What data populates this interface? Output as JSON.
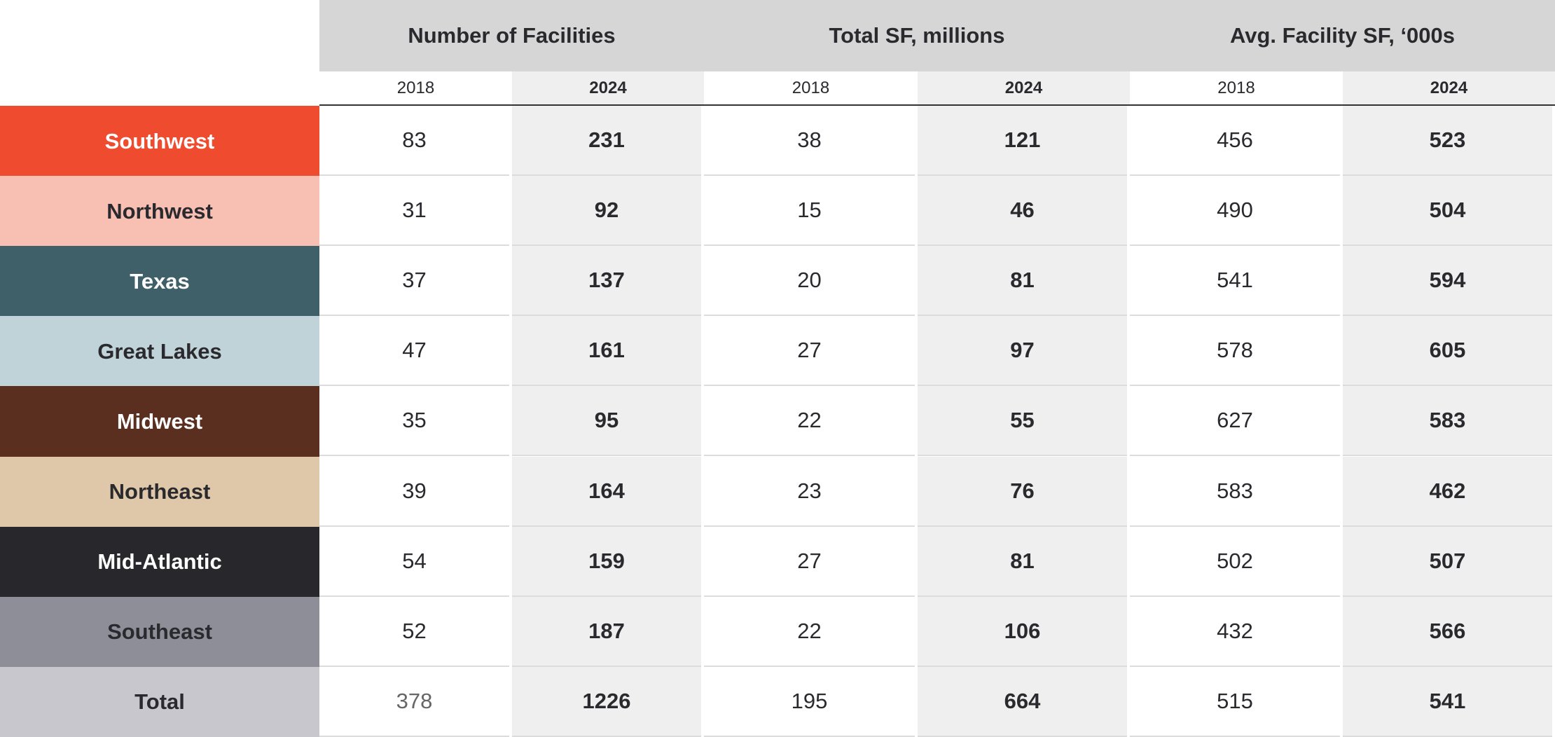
{
  "table": {
    "groups": [
      {
        "title": "Number of Facilities",
        "years": [
          "2018",
          "2024"
        ]
      },
      {
        "title": "Total SF, millions",
        "years": [
          "2018",
          "2024"
        ]
      },
      {
        "title": "Avg. Facility SF, ‘000s",
        "years": [
          "2018",
          "2024"
        ]
      }
    ],
    "rows": [
      {
        "label": "Southwest",
        "color": "#ef4b2e",
        "text_color": "#ffffff",
        "values": [
          83,
          231,
          38,
          121,
          456,
          523
        ]
      },
      {
        "label": "Northwest",
        "color": "#f8bfb3",
        "text_color": "#2a2a2e",
        "values": [
          31,
          92,
          15,
          46,
          490,
          504
        ]
      },
      {
        "label": "Texas",
        "color": "#3f5f69",
        "text_color": "#ffffff",
        "values": [
          37,
          137,
          20,
          81,
          541,
          594
        ]
      },
      {
        "label": "Great Lakes",
        "color": "#bfd3d8",
        "text_color": "#2a2a2e",
        "values": [
          47,
          161,
          27,
          97,
          578,
          605
        ]
      },
      {
        "label": "Midwest",
        "color": "#5a2f1f",
        "text_color": "#ffffff",
        "values": [
          35,
          95,
          22,
          55,
          627,
          583
        ]
      },
      {
        "label": "Northeast",
        "color": "#dfc7a9",
        "text_color": "#2a2a2e",
        "values": [
          39,
          164,
          23,
          76,
          583,
          462
        ]
      },
      {
        "label": "Mid-Atlantic",
        "color": "#27272c",
        "text_color": "#ffffff",
        "values": [
          54,
          159,
          27,
          81,
          502,
          507
        ]
      },
      {
        "label": "Southeast",
        "color": "#8e8e98",
        "text_color": "#2a2a2e",
        "values": [
          52,
          187,
          22,
          106,
          432,
          566
        ]
      },
      {
        "label": "Total",
        "color": "#c7c7cd",
        "text_color": "#2a2a2e",
        "values": [
          378,
          1226,
          195,
          664,
          515,
          541
        ]
      }
    ]
  }
}
